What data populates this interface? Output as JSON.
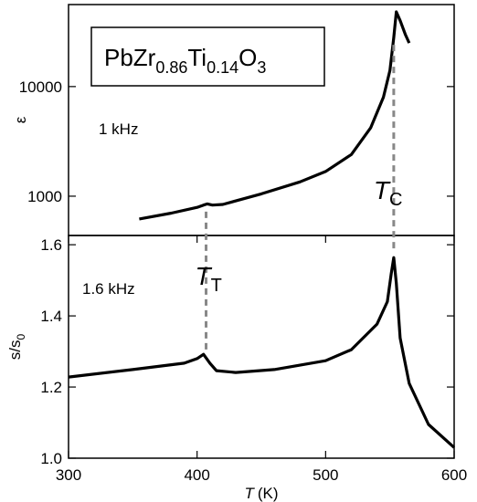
{
  "chart_data": [
    {
      "type": "line",
      "log_y": true,
      "ylabel": "ε",
      "annotation": "1 kHz",
      "formula": [
        "PbZr",
        "0.86",
        "Ti",
        "0.14",
        "O",
        "3"
      ],
      "xlim": [
        300,
        600
      ],
      "ylim": [
        438,
        56000
      ],
      "yticks": [
        1000,
        10000
      ],
      "x": [
        355,
        380,
        400,
        405,
        408,
        412,
        420,
        450,
        480,
        500,
        520,
        535,
        545,
        550,
        553,
        555,
        558,
        562,
        565
      ],
      "series": [
        {
          "color": "#000000",
          "values": [
            620,
            700,
            790,
            830,
            850,
            830,
            840,
            1050,
            1350,
            1680,
            2400,
            4200,
            8000,
            14000,
            28000,
            48000,
            40000,
            30000,
            25000
          ]
        }
      ]
    },
    {
      "type": "line",
      "ylabel": [
        "s/s",
        "0"
      ],
      "xlabel": [
        "T",
        "(K)"
      ],
      "annotation": "1.6 kHz",
      "xlim": [
        300,
        600
      ],
      "xticks": [
        300,
        400,
        500,
        600
      ],
      "ylim": [
        1.0,
        1.626
      ],
      "yticks": [
        {
          "value": 1.0,
          "label": "1.0"
        },
        1.2,
        1.4,
        1.6
      ],
      "x": [
        300,
        350,
        390,
        400,
        405,
        410,
        415,
        430,
        460,
        500,
        520,
        540,
        548,
        551,
        553,
        555,
        558,
        565,
        580,
        600
      ],
      "series": [
        {
          "color": "#000000",
          "values": [
            1.228,
            1.249,
            1.267,
            1.28,
            1.292,
            1.267,
            1.246,
            1.241,
            1.249,
            1.274,
            1.305,
            1.377,
            1.44,
            1.518,
            1.564,
            1.492,
            1.338,
            1.21,
            1.095,
            1.03
          ]
        }
      ],
      "transitions": [
        {
          "x": 407,
          "label": [
            "T",
            "T"
          ]
        },
        {
          "x": 553,
          "label": [
            "T",
            "C"
          ]
        }
      ]
    }
  ]
}
